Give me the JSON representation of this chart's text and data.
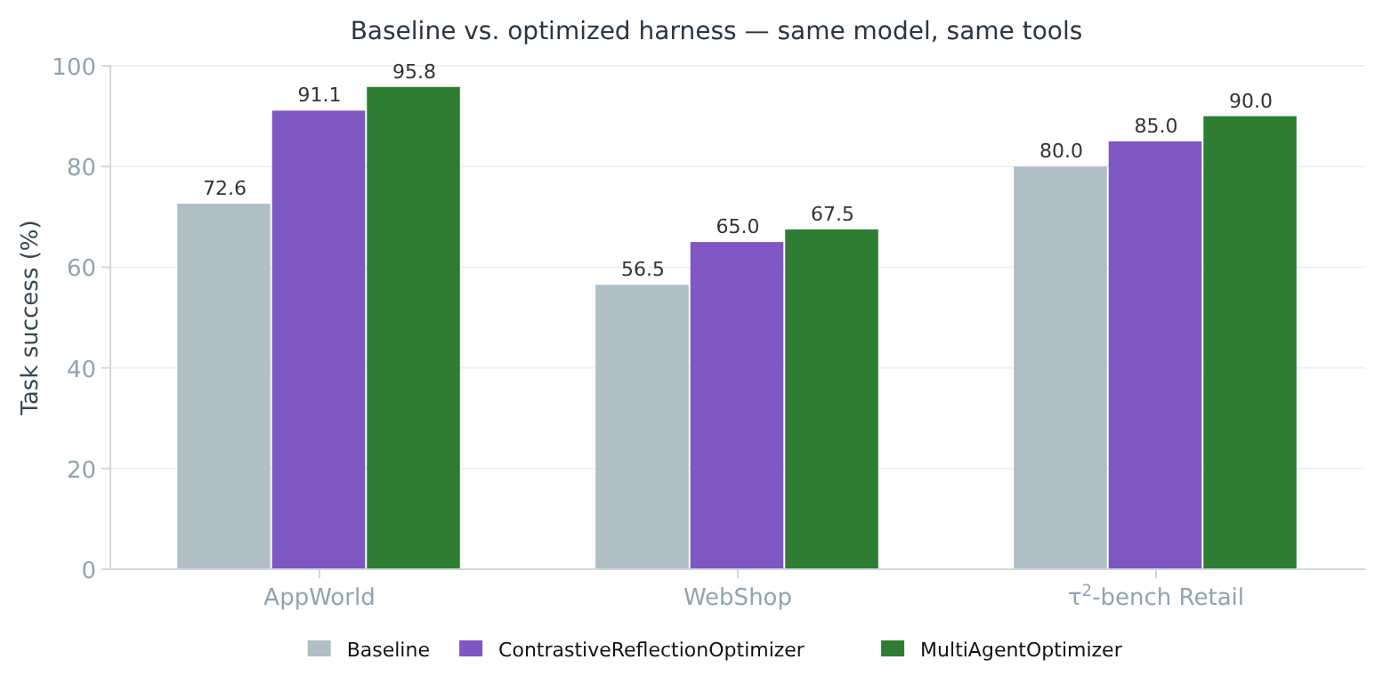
{
  "chart_data": {
    "type": "bar",
    "title": "Baseline vs. optimized harness — same model, same tools",
    "ylabel": "Task success (%)",
    "categories": [
      "AppWorld",
      "WebShop",
      "τ$^{2}$-bench Retail"
    ],
    "series": [
      {
        "name": "Baseline",
        "color": "#b0bec5",
        "values": [
          72.6,
          56.5,
          80.0
        ]
      },
      {
        "name": "ContrastiveReflectionOptimizer",
        "color": "#7e57c2",
        "values": [
          91.1,
          65.0,
          85.0
        ]
      },
      {
        "name": "MultiAgentOptimizer",
        "color": "#2e7d32",
        "values": [
          95.8,
          67.5,
          90.0
        ]
      }
    ],
    "value_labels": [
      [
        "72.6",
        "56.5",
        "80.0"
      ],
      [
        "91.1",
        "65.0",
        "85.0"
      ],
      [
        "95.8",
        "67.5",
        "90.0"
      ]
    ],
    "ylim": [
      0,
      100
    ],
    "yticks": [
      0,
      20,
      40,
      60,
      80,
      100
    ],
    "grid": "y",
    "legend": "bottom"
  }
}
